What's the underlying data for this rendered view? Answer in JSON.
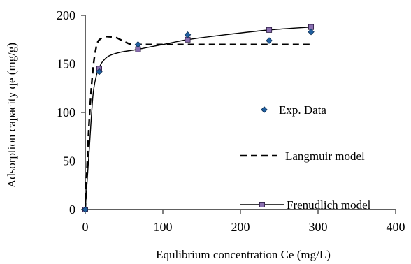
{
  "chart_data": {
    "type": "scatter",
    "title": "",
    "xlabel": "Equlibrium concentration Ce (mg/L)",
    "ylabel": "Adsorption capacity qe (mg/g)",
    "xlim": [
      0,
      400
    ],
    "ylim": [
      0,
      200
    ],
    "xticks": [
      0,
      100,
      200,
      300,
      400
    ],
    "yticks": [
      0,
      50,
      100,
      150,
      200
    ],
    "grid": false,
    "legend_position": "right",
    "series": [
      {
        "name": "Exp. Data",
        "kind": "markers",
        "marker": "diamond",
        "color": "#1f5fa0",
        "x": [
          0,
          18,
          68,
          132,
          237,
          291
        ],
        "y": [
          0,
          142,
          170,
          180,
          174,
          183
        ]
      },
      {
        "name": "Langmuir model",
        "kind": "dashed-line",
        "color": "#000000",
        "x": [
          0,
          5,
          10,
          15,
          20,
          25,
          30,
          40,
          50,
          60,
          70,
          80,
          100,
          150,
          200,
          250,
          290
        ],
        "y": [
          0,
          90,
          145,
          170,
          176,
          178,
          178,
          177,
          173,
          170,
          170,
          170,
          170,
          170,
          170,
          170,
          170
        ]
      },
      {
        "name": "Frenudlich model",
        "kind": "line-markers",
        "marker": "square",
        "color": "#000000",
        "marker_color": "#8a6fb0",
        "curve_x": [
          0,
          5,
          10,
          15,
          18,
          22,
          30,
          45,
          68,
          100,
          132,
          180,
          237,
          291
        ],
        "curve_y": [
          0,
          60,
          118,
          140,
          146,
          152,
          158,
          162,
          165,
          170,
          175,
          180,
          185,
          188
        ],
        "x": [
          0,
          18,
          68,
          132,
          237,
          291
        ],
        "y": [
          0,
          145,
          165,
          175,
          185,
          188
        ]
      }
    ]
  }
}
